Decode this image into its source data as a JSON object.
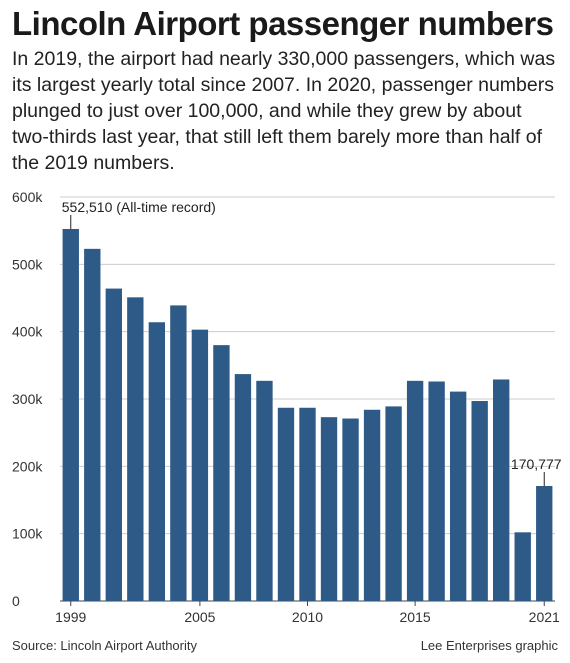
{
  "title": "Lincoln Airport passenger numbers",
  "subtitle": "In 2019, the airport had nearly 330,000 passengers, which was its largest yearly total since 2007. In 2020, passenger numbers plunged to just over 100,000, and while they grew by about two-thirds last year, that still left them barely more than half of the 2019 numbers.",
  "footer": {
    "source": "Source: Lincoln Airport Authority",
    "credit": "Lee Enterprises graphic"
  },
  "colors": {
    "bar": "#2e5a87",
    "grid": "#cccccc"
  },
  "chart_data": {
    "type": "bar",
    "categories": [
      "1999",
      "2000",
      "2001",
      "2002",
      "2003",
      "2004",
      "2005",
      "2006",
      "2007",
      "2008",
      "2009",
      "2010",
      "2011",
      "2012",
      "2013",
      "2014",
      "2015",
      "2016",
      "2017",
      "2018",
      "2019",
      "2020",
      "2021"
    ],
    "values": [
      552510,
      523000,
      464000,
      451000,
      414000,
      439000,
      403000,
      380000,
      337000,
      327000,
      287000,
      287000,
      273000,
      271000,
      284000,
      289000,
      327000,
      326000,
      311000,
      297000,
      329000,
      102000,
      170777
    ],
    "ylim": [
      0,
      600000
    ],
    "yticks": [
      0,
      100000,
      200000,
      300000,
      400000,
      500000,
      600000
    ],
    "ytick_labels": [
      "0",
      "100k",
      "200k",
      "300k",
      "400k",
      "500k",
      "600k"
    ],
    "xtick_labels": [
      {
        "year": "1999",
        "label": "1999"
      },
      {
        "year": "2005",
        "label": "2005"
      },
      {
        "year": "2010",
        "label": "2010"
      },
      {
        "year": "2015",
        "label": "2015"
      },
      {
        "year": "2021",
        "label": "2021"
      }
    ],
    "annotations": [
      {
        "year": "1999",
        "label": "552,510 (All-time record)"
      },
      {
        "year": "2021",
        "label": "170,777"
      }
    ],
    "grid": true
  }
}
